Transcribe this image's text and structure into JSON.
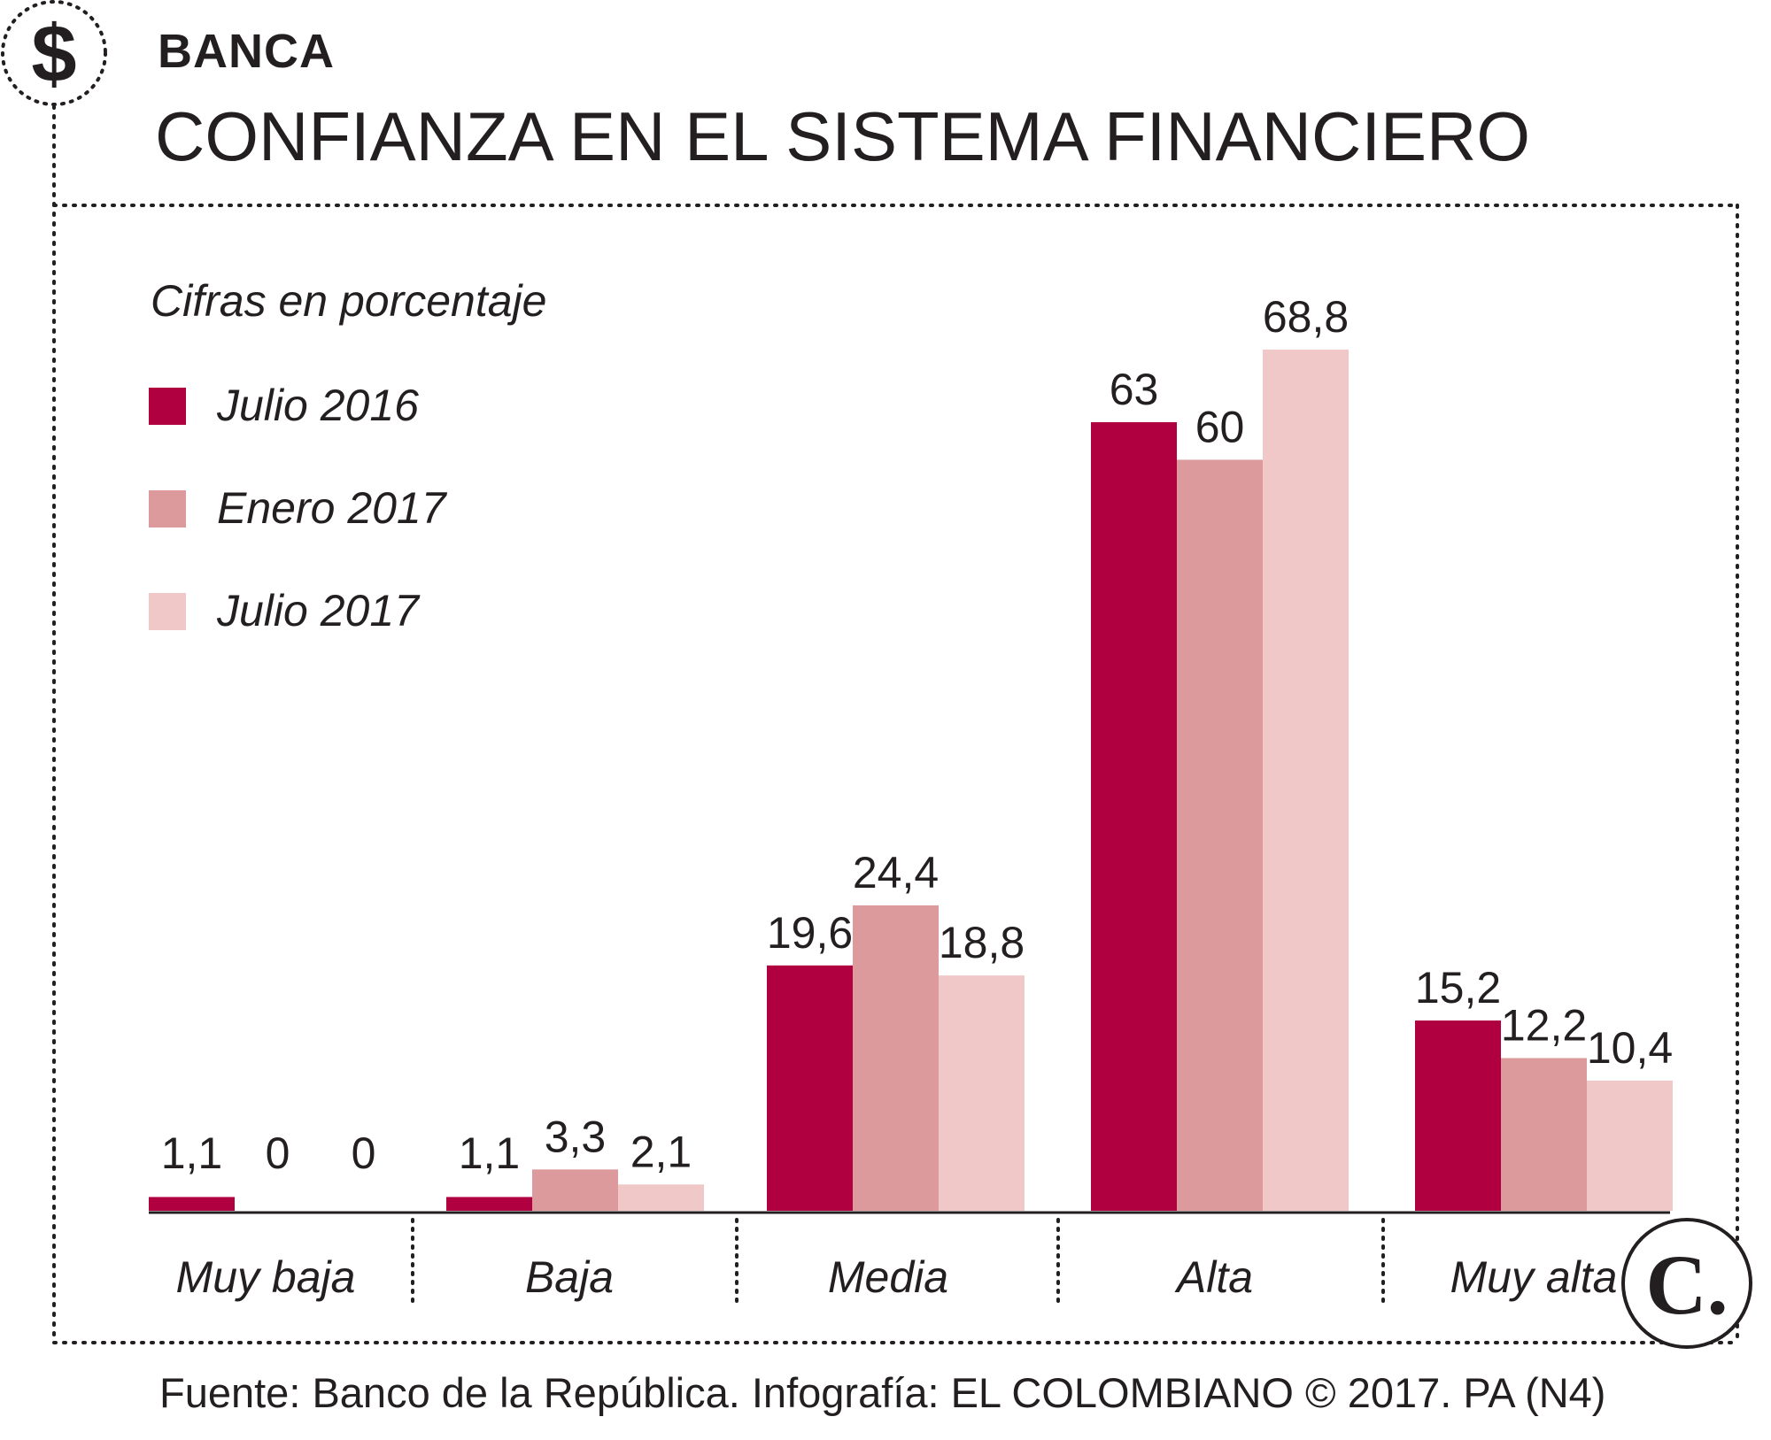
{
  "header": {
    "section": "BANCA",
    "title": "CONFIANZA EN EL SISTEMA FINANCIERO",
    "logo_symbol": "$"
  },
  "chart_data": {
    "type": "bar",
    "title": "CONFIANZA EN EL SISTEMA FINANCIERO",
    "subtitle": "Cifras en porcentaje",
    "categories": [
      "Muy baja",
      "Baja",
      "Media",
      "Alta",
      "Muy alta"
    ],
    "series": [
      {
        "name": "Julio 2016",
        "color": "#b0003f",
        "values": [
          1.1,
          1.1,
          19.6,
          63,
          15.2
        ],
        "labels": [
          "1,1",
          "1,1",
          "19,6",
          "63",
          "15,2"
        ]
      },
      {
        "name": "Enero 2017",
        "color": "#dc9a9c",
        "values": [
          0,
          3.3,
          24.4,
          60,
          12.2
        ],
        "labels": [
          "0",
          "3,3",
          "24,4",
          "60",
          "12,2"
        ]
      },
      {
        "name": "Julio 2017",
        "color": "#f0c8c8",
        "values": [
          0,
          2.1,
          18.8,
          68.8,
          10.4
        ],
        "labels": [
          "0",
          "2,1",
          "18,8",
          "68,8",
          "10,4"
        ]
      }
    ],
    "xlabel": "",
    "ylabel": "",
    "ylim": [
      0,
      68.8
    ],
    "grid": false,
    "legend": "top-left"
  },
  "footer": {
    "source": "Fuente: Banco de la República. Infografía: EL COLOMBIANO © 2017. PA (N4)",
    "brand_logo": "C."
  }
}
